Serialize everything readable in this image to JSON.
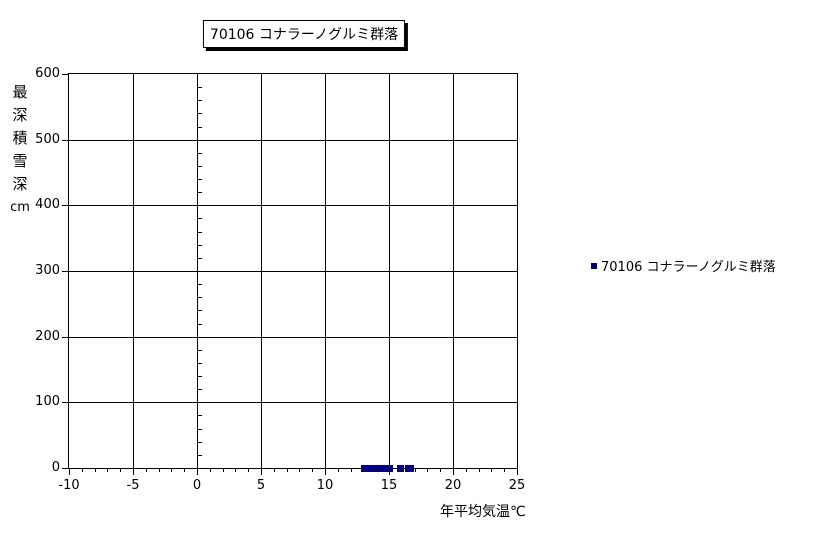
{
  "chart_data": {
    "type": "scatter",
    "title": "70106 コナラーノグルミ群落",
    "xlabel": "年平均気温℃",
    "ylabel": "最深積雪深",
    "ylabel_unit": "cm",
    "xlim": [
      -10,
      25
    ],
    "ylim": [
      0,
      600
    ],
    "xticks": [
      -10,
      -5,
      0,
      5,
      10,
      15,
      20,
      25
    ],
    "yticks": [
      0,
      100,
      200,
      300,
      400,
      500,
      600
    ],
    "x_minor_step": 1,
    "y_minor_step": 20,
    "grid": true,
    "legend_position": "right",
    "background_color": "#ffffff",
    "axis_color": "#000000",
    "series": [
      {
        "name": "70106 コナラーノグルミ群落",
        "color": "#000080",
        "marker": "square",
        "points": [
          [
            13.1,
            0
          ],
          [
            13.3,
            0
          ],
          [
            13.5,
            0
          ],
          [
            13.7,
            0
          ],
          [
            13.9,
            0
          ],
          [
            14.1,
            0
          ],
          [
            14.3,
            0
          ],
          [
            14.5,
            0
          ],
          [
            14.7,
            0
          ],
          [
            14.9,
            0
          ],
          [
            15.0,
            0
          ],
          [
            15.9,
            0
          ],
          [
            16.5,
            0
          ],
          [
            16.7,
            0
          ]
        ]
      }
    ]
  }
}
